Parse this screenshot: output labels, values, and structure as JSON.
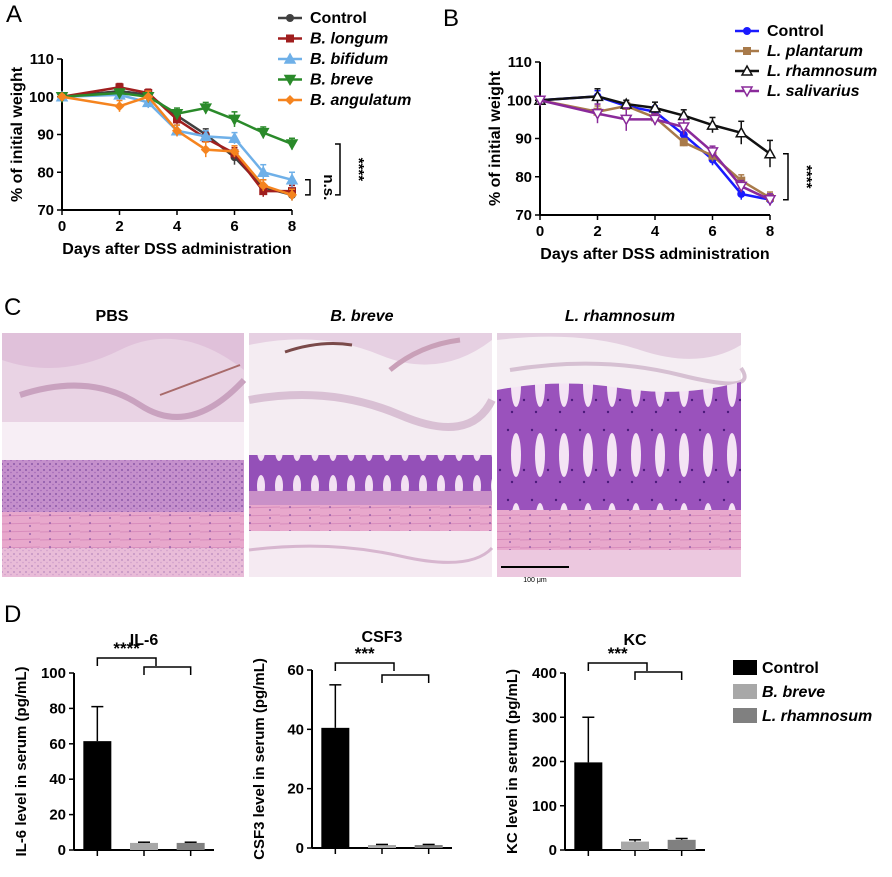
{
  "colors": {
    "control_bif": "#404040",
    "b_longum": "#a01e1e",
    "b_bifidum": "#6fb0e8",
    "b_breve": "#2a8a2a",
    "b_angulatum": "#f5841f",
    "control_lac": "#1a1aff",
    "l_plantarum": "#a87a4a",
    "l_rhamnosum": "#111111",
    "l_salivarius": "#8a2a9a",
    "bar_control": "#000000",
    "bar_b_breve": "#a8a8a8",
    "bar_l_rhamnosum": "#808080",
    "tissue_pink": "#e7b3d3",
    "tissue_purple": "#8f4fb5"
  },
  "panel_c": {
    "label": "C",
    "titles": [
      "PBS",
      "B. breve",
      "L. rhamnosum"
    ],
    "scale_bar_label": "100 μm"
  },
  "chart_data": [
    {
      "panel": "A",
      "type": "line",
      "xlabel": "Days after DSS administration",
      "ylabel": "% of initial weight",
      "xlim": [
        0,
        8
      ],
      "ylim": [
        70,
        110
      ],
      "xticks": [
        "0",
        "2",
        "4",
        "6",
        "8"
      ],
      "yticks": [
        "70",
        "80",
        "90",
        "100",
        "110"
      ],
      "legend_position": "top-right",
      "series": [
        {
          "name": "Control",
          "color_key": "control_bif",
          "marker": "circle",
          "x": [
            0,
            2,
            3,
            4,
            5,
            6,
            7,
            8
          ],
          "y": [
            100,
            101.5,
            100.5,
            95,
            90,
            84,
            76,
            74
          ],
          "err": [
            0.5,
            1,
            1,
            1.5,
            1.5,
            2,
            2,
            1.5
          ]
        },
        {
          "name": "B. longum",
          "color_key": "b_longum",
          "marker": "square",
          "x": [
            0,
            2,
            3,
            4,
            5,
            6,
            7,
            8
          ],
          "y": [
            100,
            102.5,
            101,
            94,
            89,
            85,
            75,
            75
          ],
          "err": [
            0.5,
            1,
            1,
            1.5,
            1.5,
            1.5,
            1.5,
            1.5
          ]
        },
        {
          "name": "B. bifidum",
          "color_key": "b_bifidum",
          "marker": "triangle",
          "x": [
            0,
            2,
            3,
            4,
            5,
            6,
            7,
            8
          ],
          "y": [
            100,
            100.5,
            98.5,
            91,
            89.5,
            89,
            80,
            78
          ],
          "err": [
            0.5,
            1,
            1.5,
            1.5,
            1.5,
            1.5,
            2,
            2
          ]
        },
        {
          "name": "B. breve",
          "color_key": "b_breve",
          "marker": "triangle-down",
          "x": [
            0,
            2,
            3,
            4,
            5,
            6,
            7,
            8
          ],
          "y": [
            100,
            101,
            100,
            95.5,
            97,
            94,
            90.5,
            87.5
          ],
          "err": [
            0.5,
            1,
            1,
            1.5,
            1.5,
            2,
            1.5,
            1.5
          ]
        },
        {
          "name": "B. angulatum",
          "color_key": "b_angulatum",
          "marker": "diamond",
          "x": [
            0,
            2,
            3,
            4,
            5,
            6,
            7,
            8
          ],
          "y": [
            100,
            97.5,
            100,
            91,
            86,
            85.5,
            76.5,
            74
          ],
          "err": [
            0.5,
            1.5,
            1.5,
            1.5,
            2,
            1.5,
            1.5,
            1.5
          ]
        }
      ],
      "annotations": [
        "n.s.",
        "****"
      ]
    },
    {
      "panel": "B",
      "type": "line",
      "xlabel": "Days after DSS administration",
      "ylabel": "% of initial weight",
      "xlim": [
        0,
        8
      ],
      "ylim": [
        70,
        110
      ],
      "xticks": [
        "0",
        "2",
        "4",
        "6",
        "8"
      ],
      "yticks": [
        "70",
        "80",
        "90",
        "100",
        "110"
      ],
      "legend_position": "top-right",
      "series": [
        {
          "name": "Control",
          "color_key": "control_lac",
          "marker": "circle",
          "x": [
            0,
            2,
            3,
            4,
            5,
            6,
            7,
            8
          ],
          "y": [
            100,
            101,
            98.5,
            97,
            91,
            84.5,
            75.5,
            74
          ],
          "err": [
            0.5,
            1.5,
            1,
            1.5,
            1.5,
            1.5,
            1.5,
            1.5
          ]
        },
        {
          "name": "L. plantarum",
          "color_key": "l_plantarum",
          "marker": "square",
          "x": [
            0,
            2,
            3,
            4,
            5,
            6,
            7,
            8
          ],
          "y": [
            100,
            97,
            98.5,
            95.5,
            89,
            85.5,
            79,
            74.5
          ],
          "err": [
            0.5,
            1.5,
            1,
            1.5,
            1,
            1.5,
            1.5,
            1.5
          ]
        },
        {
          "name": "L. rhamnosum",
          "color_key": "l_rhamnosum",
          "marker": "triangle-open",
          "x": [
            0,
            2,
            3,
            4,
            5,
            6,
            7,
            8
          ],
          "y": [
            100,
            101,
            99,
            98,
            96,
            93.5,
            91.5,
            86
          ],
          "err": [
            0.5,
            2,
            1,
            1.5,
            1.5,
            2,
            3,
            3.5
          ]
        },
        {
          "name": "L. salivarius",
          "color_key": "l_salivarius",
          "marker": "triangle-down-open",
          "x": [
            0,
            2,
            3,
            4,
            5,
            6,
            7,
            8
          ],
          "y": [
            100,
            96.5,
            95,
            95,
            93,
            86.5,
            77.5,
            74
          ],
          "err": [
            0.5,
            2.5,
            3,
            1.5,
            2,
            1.5,
            1.5,
            1.5
          ]
        }
      ],
      "annotations": [
        "****"
      ]
    },
    {
      "panel": "D",
      "type": "bar",
      "title": "IL-6",
      "ylabel": "IL-6 level in serum (pg/mL)",
      "ylim": [
        0,
        100
      ],
      "yticks": [
        "0",
        "20",
        "40",
        "60",
        "80",
        "100"
      ],
      "categories": [
        "Control",
        "B. breve",
        "L. rhamnosum"
      ],
      "values": [
        61.5,
        4,
        4
      ],
      "errors": [
        19.5,
        0.4,
        0.4
      ],
      "annotations": [
        "****"
      ]
    },
    {
      "panel": "D",
      "type": "bar",
      "title": "CSF3",
      "ylabel": "CSF3 level in serum (pg/mL)",
      "ylim": [
        0,
        60
      ],
      "yticks": [
        "0",
        "20",
        "40",
        "60"
      ],
      "categories": [
        "Control",
        "B. breve",
        "L. rhamnosum"
      ],
      "values": [
        40.5,
        1,
        1
      ],
      "errors": [
        14.5,
        0.2,
        0.2
      ],
      "annotations": [
        "***"
      ]
    },
    {
      "panel": "D",
      "type": "bar",
      "title": "KC",
      "ylabel": "KC level in serum (pg/mL)",
      "ylim": [
        0,
        400
      ],
      "yticks": [
        "0",
        "100",
        "200",
        "300",
        "400"
      ],
      "categories": [
        "Control",
        "B. breve",
        "L. rhamnosum"
      ],
      "values": [
        198,
        19,
        23
      ],
      "errors": [
        102,
        4,
        3
      ],
      "annotations": [
        "***"
      ],
      "legend": [
        {
          "name": "Control",
          "color_key": "bar_control"
        },
        {
          "name": "B. breve",
          "color_key": "bar_b_breve"
        },
        {
          "name": "L. rhamnosum",
          "color_key": "bar_l_rhamnosum"
        }
      ]
    }
  ],
  "panel_labels": [
    "A",
    "B",
    "C",
    "D"
  ]
}
